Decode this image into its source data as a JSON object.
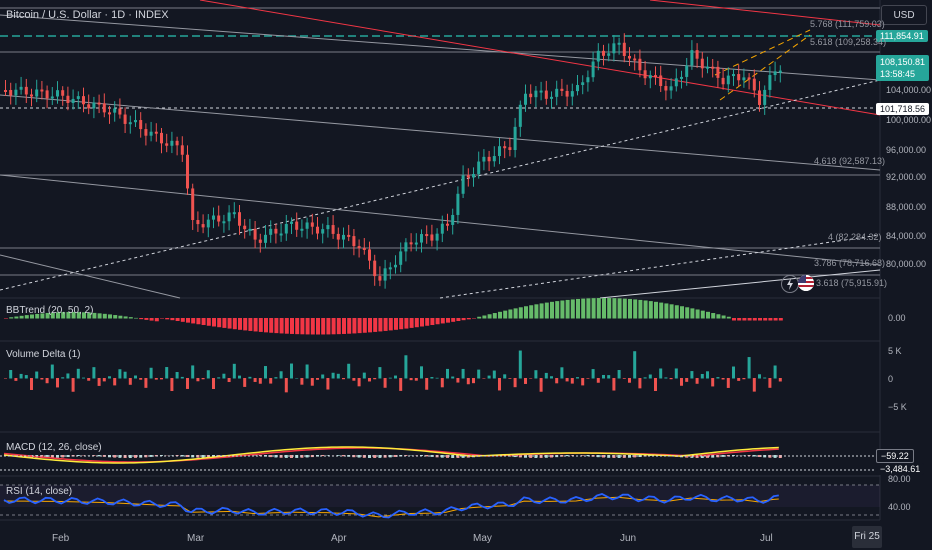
{
  "symbol": {
    "title": "Bitcoin / U.S. Dollar · 1D · INDEX"
  },
  "currency": "USD",
  "price_axis": [
    "104,000.00",
    "100,000.00",
    "96,000.00",
    "92,000.00",
    "88,000.00",
    "84,000.00",
    "80,000.00"
  ],
  "price_tags": {
    "top_level": "111,854.91",
    "current": "108,150.81",
    "countdown": "13:58:45",
    "support": "101,718.56"
  },
  "fib_levels": [
    "5.768 (111,759.03)",
    "5.618 (109,258.34)",
    "4.618 (92,587.13)",
    "4 (82,284.32)",
    "3.786 (78,716.68)",
    "3.618 (75,915.91)"
  ],
  "bbtrend": {
    "label": "BBTrend (20, 50, 2)",
    "value": "0.00"
  },
  "volume_delta": {
    "label": "Volume Delta (1)",
    "axis": [
      "5 K",
      "0",
      "−5 K"
    ]
  },
  "macd": {
    "label": "MACD (12, 26, close)",
    "values": [
      "−59.22",
      "−3,484.61"
    ]
  },
  "rsi": {
    "label": "RSI (14, close)",
    "axis": [
      "80.00",
      "40.00"
    ]
  },
  "time_axis": [
    "Feb",
    "Mar",
    "Apr",
    "May",
    "Jun",
    "Jul"
  ],
  "time_axis_end": "Fri 25",
  "colors": {
    "up": "#26a69a",
    "down": "#ef5350",
    "background": "#131722",
    "accent": "#2962ff"
  },
  "icons": [
    "lightning-icon",
    "us-flag-icon"
  ]
}
